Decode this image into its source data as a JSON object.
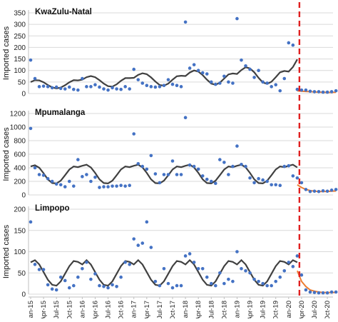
{
  "colors": {
    "points": "#4472C4",
    "fit": "#404040",
    "forecast": "#ED7D31",
    "intervention": "#E02020",
    "grid": "#d9d9d9",
    "axis": "#bfbfbf"
  },
  "shared": {
    "ylabel": "Imported cases",
    "intervention_date": "Mar-20",
    "x_tick_labels": [
      "Jan-15",
      "Apr-15",
      "Jul-15",
      "Oct-15",
      "Jan-16",
      "Apr-16",
      "Jul-16",
      "Oct-16",
      "Jan-17",
      "Apr-17",
      "Jul-17",
      "Oct-17",
      "Jan-18",
      "Apr-18",
      "Jul-18",
      "Oct-18",
      "Jan-19",
      "Apr-19",
      "Jul-19",
      "Oct-19",
      "Jan-20",
      "Apr-20",
      "Jul-20",
      "Oct-20"
    ]
  },
  "chart_data": [
    {
      "type": "scatter",
      "title": "KwaZulu-Natal",
      "ylabel": "Imported cases",
      "ylim": [
        0,
        350
      ],
      "yticks": [
        0,
        50,
        100,
        150,
        200,
        250,
        300,
        350
      ],
      "grid": true,
      "x": [
        "Jan-15",
        "Feb-15",
        "Mar-15",
        "Apr-15",
        "May-15",
        "Jun-15",
        "Jul-15",
        "Aug-15",
        "Sep-15",
        "Oct-15",
        "Nov-15",
        "Dec-15",
        "Jan-16",
        "Feb-16",
        "Mar-16",
        "Apr-16",
        "May-16",
        "Jun-16",
        "Jul-16",
        "Aug-16",
        "Sep-16",
        "Oct-16",
        "Nov-16",
        "Dec-16",
        "Jan-17",
        "Feb-17",
        "Mar-17",
        "Apr-17",
        "May-17",
        "Jun-17",
        "Jul-17",
        "Aug-17",
        "Sep-17",
        "Oct-17",
        "Nov-17",
        "Dec-17",
        "Jan-18",
        "Feb-18",
        "Mar-18",
        "Apr-18",
        "May-18",
        "Jun-18",
        "Jul-18",
        "Aug-18",
        "Sep-18",
        "Oct-18",
        "Nov-18",
        "Dec-18",
        "Jan-19",
        "Feb-19",
        "Mar-19",
        "Apr-19",
        "May-19",
        "Jun-19",
        "Jul-19",
        "Aug-19",
        "Sep-19",
        "Oct-19",
        "Nov-19",
        "Dec-19",
        "Jan-20",
        "Feb-20",
        "Mar-20",
        "Apr-20",
        "May-20",
        "Jun-20",
        "Jul-20",
        "Aug-20",
        "Sep-20",
        "Oct-20",
        "Nov-20",
        "Dec-20"
      ],
      "observed": [
        145,
        65,
        30,
        32,
        30,
        25,
        28,
        22,
        20,
        28,
        18,
        15,
        65,
        30,
        30,
        38,
        28,
        20,
        15,
        25,
        20,
        18,
        30,
        20,
        105,
        60,
        45,
        35,
        30,
        28,
        30,
        35,
        60,
        40,
        35,
        30,
        310,
        110,
        125,
        100,
        90,
        85,
        50,
        40,
        45,
        75,
        50,
        45,
        325,
        145,
        120,
        105,
        70,
        100,
        50,
        45,
        30,
        38,
        12,
        65,
        220,
        210,
        18,
        15,
        15,
        10,
        8,
        8,
        6,
        6,
        8,
        12
      ],
      "fitted": [
        50,
        58,
        57,
        49,
        37,
        27,
        22,
        26,
        36,
        49,
        58,
        57,
        60,
        71,
        76,
        71,
        58,
        43,
        32,
        30,
        40,
        55,
        67,
        67,
        68,
        81,
        88,
        84,
        70,
        52,
        37,
        34,
        43,
        60,
        75,
        77,
        76,
        91,
        100,
        95,
        80,
        60,
        43,
        38,
        47,
        65,
        83,
        87,
        85,
        102,
        114,
        109,
        92,
        68,
        48,
        42,
        51,
        71,
        92,
        98,
        95,
        115,
        148
      ],
      "forecast": [
        12,
        10,
        9,
        8,
        7,
        6,
        6,
        5,
        5,
        5
      ]
    },
    {
      "type": "scatter",
      "title": "Mpumalanga",
      "ylabel": "Imported cases",
      "ylim": [
        0,
        1200
      ],
      "yticks": [
        0,
        200,
        400,
        600,
        800,
        1000,
        1200
      ],
      "grid": true,
      "x": [
        "Jan-15",
        "Feb-15",
        "Mar-15",
        "Apr-15",
        "May-15",
        "Jun-15",
        "Jul-15",
        "Aug-15",
        "Sep-15",
        "Oct-15",
        "Nov-15",
        "Dec-15",
        "Jan-16",
        "Feb-16",
        "Mar-16",
        "Apr-16",
        "May-16",
        "Jun-16",
        "Jul-16",
        "Aug-16",
        "Sep-16",
        "Oct-16",
        "Nov-16",
        "Dec-16",
        "Jan-17",
        "Feb-17",
        "Mar-17",
        "Apr-17",
        "May-17",
        "Jun-17",
        "Jul-17",
        "Aug-17",
        "Sep-17",
        "Oct-17",
        "Nov-17",
        "Dec-17",
        "Jan-18",
        "Feb-18",
        "Mar-18",
        "Apr-18",
        "May-18",
        "Jun-18",
        "Jul-18",
        "Aug-18",
        "Sep-18",
        "Oct-18",
        "Nov-18",
        "Dec-18",
        "Jan-19",
        "Feb-19",
        "Mar-19",
        "Apr-19",
        "May-19",
        "Jun-19",
        "Jul-19",
        "Aug-19",
        "Sep-19",
        "Oct-19",
        "Nov-19",
        "Dec-19",
        "Jan-20",
        "Feb-20",
        "Mar-20",
        "Apr-20",
        "May-20",
        "Jun-20",
        "Jul-20",
        "Aug-20",
        "Sep-20",
        "Oct-20",
        "Nov-20",
        "Dec-20"
      ],
      "observed": [
        980,
        400,
        300,
        290,
        240,
        200,
        160,
        150,
        120,
        200,
        130,
        520,
        270,
        300,
        200,
        260,
        110,
        120,
        120,
        130,
        130,
        140,
        130,
        140,
        900,
        460,
        420,
        380,
        580,
        310,
        180,
        300,
        300,
        500,
        300,
        300,
        1140,
        440,
        420,
        380,
        280,
        230,
        200,
        170,
        520,
        480,
        300,
        420,
        720,
        450,
        420,
        250,
        180,
        240,
        220,
        200,
        150,
        150,
        140,
        420,
        430,
        280,
        250,
        180,
        80,
        50,
        55,
        50,
        60,
        55,
        70,
        80
      ],
      "fitted": [
        420,
        438,
        400,
        320,
        230,
        175,
        170,
        210,
        290,
        375,
        420,
        410,
        430,
        445,
        405,
        325,
        230,
        175,
        170,
        210,
        290,
        375,
        420,
        410,
        430,
        445,
        405,
        325,
        230,
        175,
        170,
        210,
        290,
        375,
        420,
        410,
        430,
        445,
        405,
        325,
        230,
        175,
        170,
        210,
        290,
        375,
        420,
        410,
        430,
        445,
        405,
        325,
        230,
        175,
        170,
        210,
        290,
        375,
        420,
        410,
        430,
        445,
        405
      ],
      "forecast": [
        150,
        110,
        80,
        65,
        55,
        50,
        50,
        52,
        55,
        58
      ]
    },
    {
      "type": "scatter",
      "title": "Limpopo",
      "ylabel": "Imported cases",
      "ylim": [
        0,
        200
      ],
      "yticks": [
        0,
        50,
        100,
        150,
        200
      ],
      "grid": true,
      "x": [
        "Jan-15",
        "Feb-15",
        "Mar-15",
        "Apr-15",
        "May-15",
        "Jun-15",
        "Jul-15",
        "Aug-15",
        "Sep-15",
        "Oct-15",
        "Nov-15",
        "Dec-15",
        "Jan-16",
        "Feb-16",
        "Mar-16",
        "Apr-16",
        "May-16",
        "Jun-16",
        "Jul-16",
        "Aug-16",
        "Sep-16",
        "Oct-16",
        "Nov-16",
        "Dec-16",
        "Jan-17",
        "Feb-17",
        "Mar-17",
        "Apr-17",
        "May-17",
        "Jun-17",
        "Jul-17",
        "Aug-17",
        "Sep-17",
        "Oct-17",
        "Nov-17",
        "Dec-17",
        "Jan-18",
        "Feb-18",
        "Mar-18",
        "Apr-18",
        "May-18",
        "Jun-18",
        "Jul-18",
        "Aug-18",
        "Sep-18",
        "Oct-18",
        "Nov-18",
        "Dec-18",
        "Jan-19",
        "Feb-19",
        "Mar-19",
        "Apr-19",
        "May-19",
        "Jun-19",
        "Jul-19",
        "Aug-19",
        "Sep-19",
        "Oct-19",
        "Nov-19",
        "Dec-19",
        "Jan-20",
        "Feb-20",
        "Mar-20",
        "Apr-20",
        "May-20",
        "Jun-20",
        "Jul-20",
        "Aug-20",
        "Sep-20",
        "Oct-20",
        "Nov-20",
        "Dec-20"
      ],
      "observed": [
        170,
        70,
        58,
        58,
        22,
        12,
        10,
        40,
        32,
        15,
        20,
        40,
        60,
        75,
        35,
        48,
        20,
        18,
        15,
        22,
        18,
        40,
        75,
        70,
        130,
        115,
        120,
        170,
        110,
        30,
        20,
        60,
        25,
        15,
        20,
        20,
        90,
        95,
        75,
        60,
        60,
        40,
        25,
        20,
        50,
        25,
        35,
        30,
        100,
        60,
        55,
        50,
        35,
        30,
        25,
        20,
        20,
        30,
        40,
        55,
        75,
        65,
        90,
        45,
        10,
        5,
        4,
        3,
        3,
        3,
        5,
        5
      ],
      "fitted": [
        75,
        80,
        70,
        52,
        34,
        22,
        20,
        30,
        48,
        66,
        78,
        76,
        70,
        80,
        70,
        52,
        34,
        22,
        20,
        30,
        48,
        66,
        78,
        76,
        70,
        80,
        70,
        52,
        34,
        22,
        20,
        30,
        48,
        66,
        78,
        76,
        70,
        80,
        70,
        52,
        34,
        22,
        20,
        30,
        48,
        66,
        78,
        76,
        70,
        80,
        70,
        52,
        34,
        22,
        20,
        30,
        48,
        66,
        78,
        76,
        70,
        80,
        75
      ],
      "forecast": [
        55,
        30,
        18,
        10,
        7,
        5,
        4,
        4,
        4,
        4
      ]
    }
  ]
}
